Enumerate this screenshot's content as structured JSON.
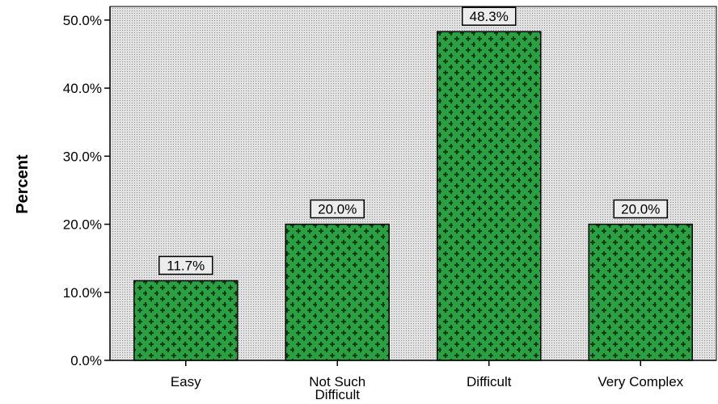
{
  "chart_data": {
    "type": "bar",
    "categories": [
      "Easy",
      "Not Such Difficult",
      "Difficult",
      "Very Complex"
    ],
    "category_lines": [
      [
        "Easy"
      ],
      [
        "Not Such",
        "Difficult"
      ],
      [
        "Difficult"
      ],
      [
        "Very Complex"
      ]
    ],
    "values": [
      11.7,
      20.0,
      48.3,
      20.0
    ],
    "data_labels": [
      "11.7%",
      "20.0%",
      "48.3%",
      "20.0%"
    ],
    "ylabel": "Percent",
    "xlabel": "",
    "ylim": [
      0,
      52
    ],
    "yticks": [
      0,
      10,
      20,
      30,
      40,
      50
    ],
    "ytick_labels": [
      "0.0%",
      "10.0%",
      "20.0%",
      "30.0%",
      "40.0%",
      "50.0%"
    ],
    "grid": false,
    "colors": {
      "bar_fill": "#2aa043",
      "bar_pattern": "#0b3d17",
      "plot_background": "#e2e2e2",
      "plot_dots": "#8a8a8a",
      "axis": "#000000"
    }
  }
}
